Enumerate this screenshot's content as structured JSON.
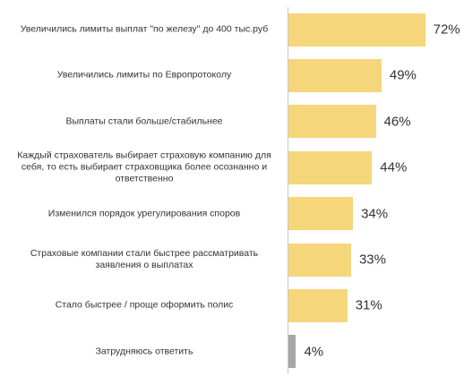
{
  "chart_data": {
    "type": "barh",
    "categories": [
      "Увеличились лимиты выплат \"по железу\" до 400 тыс.руб",
      "Увеличились лимиты по Европротоколу",
      "Выплаты стали больше/стабильнее",
      "Каждый страхователь выбирает страховую компанию для себя, то есть выбирает страховщика более осознанно и ответственно",
      "Изменился порядок урегулирования споров",
      "Страховые компании стали быстрее рассматривать заявления о выплатах",
      "Стало быстрее / проще оформить полис",
      "Затрудняюсь ответить"
    ],
    "values": [
      72,
      49,
      46,
      44,
      34,
      33,
      31,
      4
    ],
    "value_labels": [
      "72%",
      "49%",
      "46%",
      "44%",
      "34%",
      "33%",
      "31%",
      "4%"
    ],
    "colors": [
      "#f6d67b",
      "#f6d67b",
      "#f6d67b",
      "#f6d67b",
      "#f6d67b",
      "#f6d67b",
      "#f6d67b",
      "#a6a6a6"
    ],
    "xlim": [
      0,
      100
    ]
  }
}
